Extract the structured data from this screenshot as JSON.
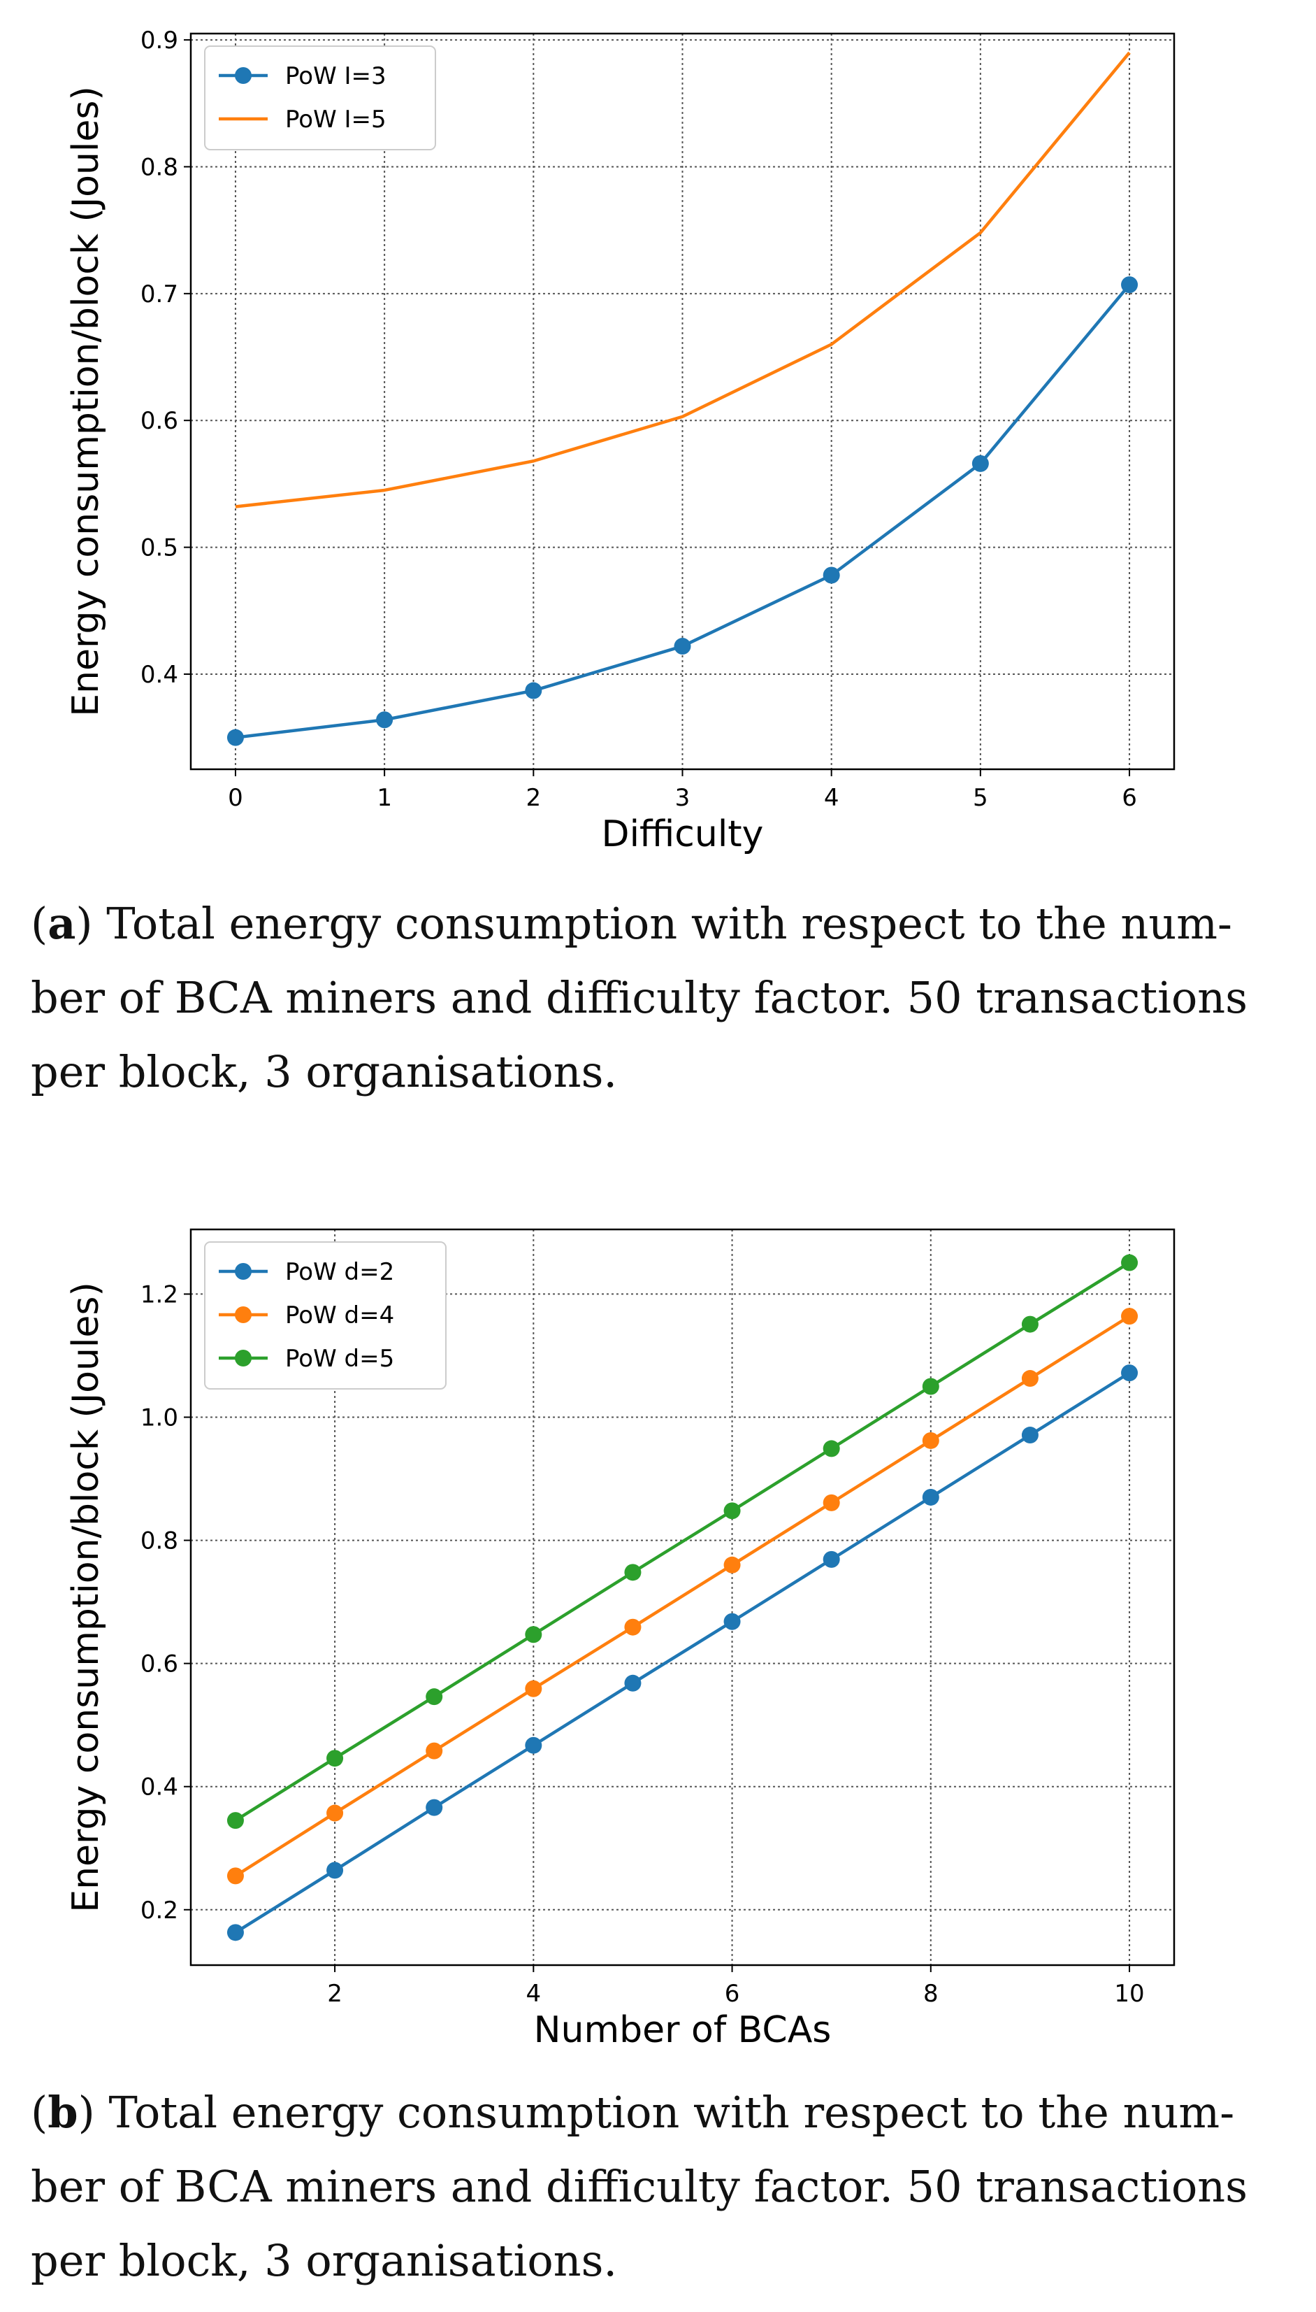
{
  "chart_data": [
    {
      "type": "line",
      "xlabel": "Difficulty",
      "ylabel": "Energy consumption/block (Joules)",
      "x": [
        0,
        1,
        2,
        3,
        4,
        5,
        6
      ],
      "xlim": [
        -0.3,
        6.3
      ],
      "ylim": [
        0.325,
        0.905
      ],
      "xticks": [
        0,
        1,
        2,
        3,
        4,
        5,
        6
      ],
      "xtick_labels": [
        "0",
        "1",
        "2",
        "3",
        "4",
        "5",
        "6"
      ],
      "yticks": [
        0.4,
        0.5,
        0.6,
        0.7,
        0.8,
        0.9
      ],
      "ytick_labels": [
        "0.4",
        "0.5",
        "0.6",
        "0.7",
        "0.8",
        "0.9"
      ],
      "grid": true,
      "legend_position": "top-left",
      "series": [
        {
          "name": "PoW I=3",
          "color": "#1f77b4",
          "marker": "circle",
          "values": [
            0.35,
            0.364,
            0.387,
            0.422,
            0.478,
            0.566,
            0.707
          ]
        },
        {
          "name": "PoW I=5",
          "color": "#ff7f0e",
          "marker": "none",
          "values": [
            0.532,
            0.545,
            0.568,
            0.603,
            0.66,
            0.748,
            0.89
          ]
        }
      ]
    },
    {
      "type": "line",
      "xlabel": "Number of BCAs",
      "ylabel": "Energy consumption/block (Joules)",
      "x": [
        1,
        2,
        3,
        4,
        5,
        6,
        7,
        8,
        9,
        10
      ],
      "xlim": [
        0.55,
        10.45
      ],
      "ylim": [
        0.11,
        1.305
      ],
      "xticks": [
        2,
        4,
        6,
        8,
        10
      ],
      "xtick_labels": [
        "2",
        "4",
        "6",
        "8",
        "10"
      ],
      "yticks": [
        0.2,
        0.4,
        0.6,
        0.8,
        1.0,
        1.2
      ],
      "ytick_labels": [
        "0.2",
        "0.4",
        "0.6",
        "0.8",
        "1.0",
        "1.2"
      ],
      "grid": true,
      "legend_position": "top-left",
      "series": [
        {
          "name": "PoW d=2",
          "color": "#1f77b4",
          "marker": "circle",
          "values": [
            0.163,
            0.264,
            0.366,
            0.467,
            0.568,
            0.668,
            0.769,
            0.87,
            0.971,
            1.072
          ]
        },
        {
          "name": "PoW d=4",
          "color": "#ff7f0e",
          "marker": "circle",
          "values": [
            0.255,
            0.357,
            0.458,
            0.559,
            0.659,
            0.76,
            0.861,
            0.962,
            1.063,
            1.164
          ]
        },
        {
          "name": "PoW d=5",
          "color": "#2ca02c",
          "marker": "circle",
          "values": [
            0.345,
            0.446,
            0.546,
            0.647,
            0.748,
            0.848,
            0.949,
            1.05,
            1.151,
            1.251
          ]
        }
      ]
    }
  ],
  "captions": {
    "a": {
      "label": "a",
      "line1": "Total energy consumption with respect to the num-",
      "line2": "ber of BCA miners and difficulty factor. 50 transactions",
      "line3": "per block, 3 organisations."
    },
    "b": {
      "label": "b",
      "line1": "Total energy consumption with respect to the num-",
      "line2": "ber of BCA miners and difficulty factor. 50 transactions",
      "line3": "per block, 3 organisations."
    }
  }
}
